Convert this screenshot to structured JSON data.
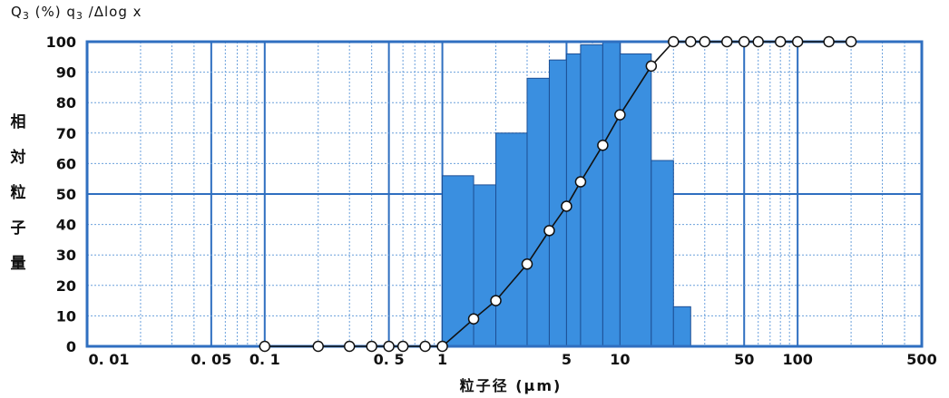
{
  "chart_data": {
    "type": "bar+line",
    "header": {
      "q_label": "Q",
      "q_sub": "3",
      "q_unit": "(%)",
      "q_small": "q",
      "q_small_sub": "3",
      "q_tail": "/Δlog x"
    },
    "ylabel_chars": [
      "相",
      "対",
      "粒",
      "子",
      "量"
    ],
    "xlabel": "粒子径 (μm)",
    "xscale": "log",
    "xlim": [
      0.01,
      500
    ],
    "ylim": [
      0,
      100
    ],
    "y_ticks": [
      0,
      10,
      20,
      30,
      40,
      50,
      60,
      70,
      80,
      90,
      100
    ],
    "x_ticks": [
      {
        "value": 0.01,
        "label": "0. 01"
      },
      {
        "value": 0.05,
        "label": "0. 05"
      },
      {
        "value": 0.1,
        "label": "0. 1"
      },
      {
        "value": 0.5,
        "label": "0. 5"
      },
      {
        "value": 1,
        "label": "1"
      },
      {
        "value": 5,
        "label": "5"
      },
      {
        "value": 10,
        "label": "10"
      },
      {
        "value": 50,
        "label": "50"
      },
      {
        "value": 100,
        "label": "100"
      },
      {
        "value": 500,
        "label": "500"
      }
    ],
    "grid": true,
    "bars": {
      "name": "q3/Δlog x",
      "color": "#3a8fe0",
      "edges": [
        1,
        1.5,
        2.0,
        3.0,
        4.0,
        5.0,
        6.0,
        8.0,
        10.0,
        15.0,
        20.0,
        25.0
      ],
      "values": [
        56,
        53,
        70,
        88,
        94,
        96,
        99,
        100,
        96,
        61,
        13
      ]
    },
    "cumulative": {
      "name": "Q3",
      "x": [
        0.1,
        0.2,
        0.3,
        0.4,
        0.5,
        0.6,
        0.8,
        1.0,
        1.5,
        2.0,
        3.0,
        4.0,
        5.0,
        6.0,
        8.0,
        10.0,
        15.0,
        20.0,
        25.0,
        30.0,
        40.0,
        50.0,
        60.0,
        80.0,
        100.0,
        150.0,
        200.0
      ],
      "y": [
        0,
        0,
        0,
        0,
        0,
        0,
        0,
        0,
        9,
        15,
        27,
        38,
        46,
        54,
        66,
        76,
        92,
        100,
        100,
        100,
        100,
        100,
        100,
        100,
        100,
        100,
        100
      ]
    },
    "colors": {
      "frame": "#2f6fc0",
      "major_grid": "#2f6fc0",
      "minor_grid": "#6aa0dc",
      "bar_fill": "#3a8fe0",
      "bar_edge": "#1d4f94",
      "line": "#111111",
      "marker_fill": "#ffffff"
    }
  }
}
